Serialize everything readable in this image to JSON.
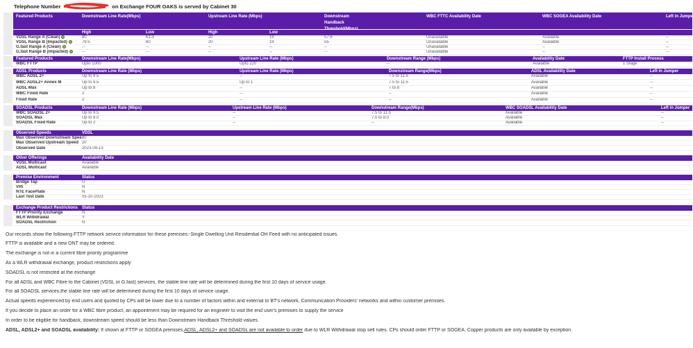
{
  "title": {
    "prefix": "Telephone Number",
    "suffix": "on Exchange FOUR OAKS is served by Cabinet 30"
  },
  "colors": {
    "header_purple": "#5a1da9",
    "row_border": "#ededed",
    "gutter_gray": "#ececec",
    "info_green": "#8dc63f",
    "info_green_border": "#44701d",
    "redaction_red": "#e63329",
    "text_dark": "#333333",
    "text_value": "#555555"
  },
  "icons": {
    "info_icon": "green-circle-info",
    "redaction": "red-scribble-over-phone-number"
  },
  "tables": {
    "featured": {
      "headers": {
        "product": "Featured Products",
        "downstream": "Downstream Line Rate(Mbps)",
        "upstream": "Upstream Line Rate (Mbps)",
        "handback": "Downstream Handback Threshold(Mbps)",
        "fttc": "WBC FTTC Availability Date",
        "sogea": "WBC SOGEA Availability Date",
        "jumper": "Left in Jumper"
      },
      "subheaders": [
        "High",
        "Low",
        "High",
        "Low"
      ],
      "rows": [
        [
          "VDSL Range A (Clean)",
          "80",
          "61.3",
          "20",
          "19",
          "57.6",
          "Unavailable",
          "Available",
          "--"
        ],
        [
          "VDSL Range B (Impacted)",
          "79.5",
          "60",
          "20",
          "19",
          "55",
          "Unavailable",
          "Available",
          "--"
        ],
        [
          "G.fast Range A (Clean)",
          "--",
          "--",
          "--",
          "--",
          "--",
          "Unavailable",
          "--",
          "--"
        ],
        [
          "G.fast Range B (Impacted)",
          "--",
          "--",
          "--",
          "--",
          "--",
          "Unavailable",
          "--",
          "--"
        ]
      ]
    },
    "fttp": {
      "headers": [
        "Featured Products",
        "Downstream Line Rate(Mbps)",
        "Upstream Line Rate (Mbps)",
        "Downstream Range (Mbps)",
        "Availability Date",
        "FTTP Install Process"
      ],
      "rows": [
        [
          "WBC FTTP",
          "Upto 1000",
          "Upto 220",
          "--",
          "Available",
          "1 Stage"
        ]
      ]
    },
    "adsl": {
      "headers": [
        "ADSL Products",
        "Downstream Line Rate (Mbps)",
        "Upstream Line Rate (Mbps)",
        "Downstream Range(Mbps)",
        "ADSL Availability Date",
        "Left in Jumper"
      ],
      "rows": [
        [
          "WBC ADSL 2+",
          "Up to 9.5",
          "--",
          "7.5 to 11.5",
          "Available",
          "--"
        ],
        [
          "WBC ADSL2+ Annex M",
          "Up to 9.5",
          "Up to 1",
          "7.5 to 11.5",
          "Available",
          "--"
        ],
        [
          "ADSL Max",
          "Up to 8",
          "--",
          "7 to 8",
          "Available",
          "--"
        ],
        [
          "WBC Fixed Rate",
          "2",
          "--",
          "--",
          "Available",
          "--"
        ],
        [
          "Fixed Rate",
          "2",
          "--",
          "--",
          "Available",
          "--"
        ]
      ]
    },
    "soadsl": {
      "headers": [
        "SOADSL Products",
        "Downstream Line Rate (Mbps)",
        "Upstream Line Rate (Mbps)",
        "Downstream Range(Mbps)",
        "WBC SOADSL Availability Date",
        "Left in Jumper"
      ],
      "rows": [
        [
          "WBC SOADSL 2+",
          "Up to 9.5",
          "--",
          "7.5 to 11.5",
          "Available",
          "--"
        ],
        [
          "SOADSL Max",
          "Up to 8.0",
          "--",
          "7.0 to 8.0",
          "Available",
          "--"
        ],
        [
          "SOADSL Fixed Rate",
          "Up to 2",
          "--",
          "--",
          "Available",
          "--"
        ]
      ]
    },
    "observed": {
      "headers": [
        "Observed Speeds",
        "VDSL"
      ],
      "rows": [
        [
          "Max Observed Downstream Speed",
          "80"
        ],
        [
          "Max Observed Upstream Speed",
          "20"
        ],
        [
          "Observed Date",
          "2023-09-13"
        ]
      ]
    },
    "other": {
      "headers": [
        "Other Offerings",
        "Availability Date"
      ],
      "rows": [
        [
          "VDSL Multicast",
          "Available"
        ],
        [
          "ADSL Multicast",
          "Available"
        ]
      ]
    },
    "premise": {
      "headers": [
        "Premise Environment",
        "Status"
      ],
      "rows": [
        [
          "Bridge Tap",
          "U"
        ],
        [
          "VRI",
          "N"
        ],
        [
          "NTE FacePlate",
          "N"
        ],
        [
          "Last Test Date",
          "05-10-2023"
        ]
      ]
    },
    "restrictions": {
      "headers": [
        "Exchange Product Restrictions",
        "Status"
      ],
      "rows": [
        [
          "FTTP Priority Exchange",
          "N"
        ],
        [
          "WLR Withdrawal",
          "Y"
        ],
        [
          "SOADSL Restriction",
          "N"
        ]
      ]
    }
  },
  "notes": [
    "Our records show the following FTTP network service information for these premises:-Single Dwelling Unit Residential OH Feed with no anticipated issues.",
    "FTTP is available and a new ONT may be ordered.",
    "The exchange is not in a current fibre priority programme",
    "As a WLR withdrawal exchange, product restrictions apply",
    "SOADSL is not restricted at the exchange",
    "For all ADSL and WBC Fibre to the Cabinet (VDSL or G.fast) services, the stable line rate will be determined during the first 10 days of service usage.",
    "For all SOADSL services,the stable line rate will be determined during the first 10 days of service usage.",
    "Actual speeds experienced by end users and quoted by CPs will be lower due to a number of factors within and external to BT's network, Communication Providers' networks and within customer premises.",
    "If you decide to place an order for a WBC fibre product, an appointment may be required for an engineer to visit the end user's premises to supply the service",
    "In order to be eligible for handback, downstream speed should be less than Downstream Handback Threshold values."
  ],
  "availability_note": {
    "bold": "ADSL, ADSL2+ and SOADSL availability:",
    "pre": " If shown at FTTP or SOGEA premises,",
    "underlined": "ADSL, ADSL2+ and SOADSL are not available to order",
    "post": " due to WLR Withdrawal stop sell rules. CPs should order FTTP or SOGEA. Copper products are only available by exception."
  }
}
